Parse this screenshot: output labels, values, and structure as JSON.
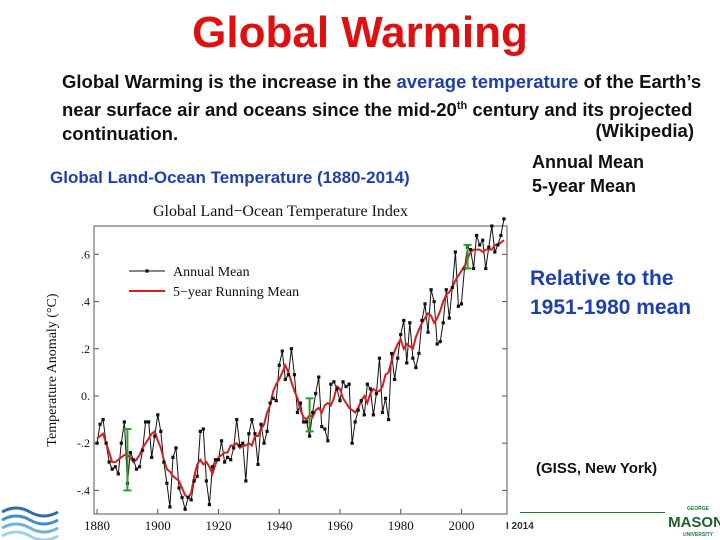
{
  "slide": {
    "title": "Global Warming",
    "intro_pre": "Global Warming is the increase in the ",
    "intro_highlight": "average temperature",
    "intro_mid": " of the Earth’s near surface air and oceans since the mid-20",
    "intro_sup": "th",
    "intro_post": " century and its projected continuation.",
    "wiki": "(Wikipedia)",
    "subtitle": "Global Land-Ocean Temperature (1880-2014)",
    "legend_note_1": "Annual Mean",
    "legend_note_2": "5-year Mean",
    "relative_1": "Relative to the",
    "relative_2": "1951-1980 mean",
    "source": "(GISS, New York)",
    "footer_year": "I 2014",
    "logo_top": "GEORGE",
    "logo_main": "MASON",
    "logo_bottom": "UNIVERSITY"
  },
  "colors": {
    "title": "#e01010",
    "highlight": "#1f3fb0",
    "annual": "#111111",
    "running": "#d42020",
    "error_bar": "#2e9e2e"
  },
  "chart_data": {
    "type": "line",
    "title": "Global Land−Ocean Temperature Index",
    "xlabel": "",
    "ylabel": "Temperature Anomaly (°C)",
    "xlim": [
      1879,
      2015
    ],
    "ylim": [
      -0.5,
      0.72
    ],
    "x_ticks": [
      1880,
      1900,
      1920,
      1940,
      1960,
      1980,
      2000
    ],
    "y_ticks": [
      -0.4,
      -0.2,
      0.0,
      0.2,
      0.4,
      0.6
    ],
    "y_tick_labels": [
      "-.4",
      "-.2",
      "0.",
      ".2",
      ".4",
      ".6"
    ],
    "legend": [
      "Annual Mean",
      "5−year Running Mean"
    ],
    "legend_position": "top-left",
    "years_start": 1880,
    "series": [
      {
        "name": "Annual Mean",
        "values": [
          -0.2,
          -0.12,
          -0.1,
          -0.2,
          -0.28,
          -0.31,
          -0.3,
          -0.33,
          -0.2,
          -0.11,
          -0.37,
          -0.24,
          -0.27,
          -0.31,
          -0.3,
          -0.23,
          -0.11,
          -0.11,
          -0.26,
          -0.17,
          -0.08,
          -0.15,
          -0.28,
          -0.37,
          -0.47,
          -0.26,
          -0.22,
          -0.39,
          -0.43,
          -0.48,
          -0.43,
          -0.44,
          -0.36,
          -0.34,
          -0.15,
          -0.14,
          -0.36,
          -0.46,
          -0.3,
          -0.27,
          -0.27,
          -0.19,
          -0.28,
          -0.26,
          -0.27,
          -0.22,
          -0.1,
          -0.21,
          -0.2,
          -0.36,
          -0.16,
          -0.1,
          -0.16,
          -0.29,
          -0.12,
          -0.2,
          -0.15,
          -0.03,
          -0.01,
          -0.02,
          0.13,
          0.19,
          0.07,
          0.09,
          0.2,
          0.09,
          -0.07,
          -0.03,
          -0.11,
          -0.11,
          -0.17,
          -0.07,
          0.01,
          0.08,
          -0.13,
          -0.14,
          -0.19,
          0.05,
          0.06,
          0.03,
          -0.02,
          0.06,
          0.04,
          0.05,
          -0.2,
          -0.11,
          -0.06,
          -0.02,
          -0.08,
          0.05,
          0.03,
          -0.08,
          0.01,
          0.16,
          -0.07,
          -0.01,
          -0.1,
          0.18,
          0.07,
          0.16,
          0.26,
          0.32,
          0.14,
          0.31,
          0.16,
          0.12,
          0.18,
          0.32,
          0.39,
          0.27,
          0.45,
          0.4,
          0.22,
          0.23,
          0.31,
          0.45,
          0.33,
          0.46,
          0.61,
          0.38,
          0.39,
          0.54,
          0.63,
          0.62,
          0.54,
          0.68,
          0.64,
          0.66,
          0.54,
          0.63,
          0.72,
          0.61,
          0.64,
          0.68,
          0.75
        ]
      },
      {
        "name": "5−year Running Mean",
        "values": [
          -0.18,
          -0.17,
          -0.16,
          -0.2,
          -0.24,
          -0.28,
          -0.28,
          -0.27,
          -0.26,
          -0.25,
          -0.25,
          -0.26,
          -0.28,
          -0.27,
          -0.25,
          -0.22,
          -0.2,
          -0.18,
          -0.16,
          -0.15,
          -0.19,
          -0.22,
          -0.27,
          -0.31,
          -0.32,
          -0.34,
          -0.35,
          -0.36,
          -0.39,
          -0.42,
          -0.43,
          -0.41,
          -0.34,
          -0.29,
          -0.27,
          -0.29,
          -0.28,
          -0.3,
          -0.33,
          -0.29,
          -0.26,
          -0.25,
          -0.24,
          -0.24,
          -0.21,
          -0.21,
          -0.2,
          -0.22,
          -0.21,
          -0.21,
          -0.2,
          -0.21,
          -0.17,
          -0.17,
          -0.14,
          -0.12,
          -0.07,
          -0.04,
          0.02,
          0.05,
          0.07,
          0.1,
          0.13,
          0.1,
          0.06,
          0.02,
          -0.01,
          -0.06,
          -0.09,
          -0.1,
          -0.08,
          -0.09,
          -0.06,
          -0.05,
          -0.07,
          -0.04,
          -0.03,
          -0.04,
          -0.01,
          0.04,
          0.03,
          -0.01,
          -0.03,
          -0.05,
          -0.06,
          -0.07,
          -0.05,
          -0.02,
          0.0,
          -0.03,
          0.01,
          0.03,
          0.02,
          0.02,
          0.04,
          0.09,
          0.1,
          0.15,
          0.19,
          0.22,
          0.24,
          0.2,
          0.22,
          0.21,
          0.2,
          0.25,
          0.28,
          0.31,
          0.33,
          0.35,
          0.34,
          0.31,
          0.33,
          0.36,
          0.4,
          0.43,
          0.44,
          0.46,
          0.49,
          0.51,
          0.53,
          0.55,
          0.58,
          0.61,
          0.62,
          0.62,
          0.62,
          0.61,
          0.62,
          0.62,
          0.62,
          0.64,
          0.64,
          0.65,
          0.66
        ]
      }
    ],
    "error_bars": [
      {
        "x": 1890,
        "center": -0.27,
        "half_width": 0.13
      },
      {
        "x": 1950,
        "center": -0.08,
        "half_width": 0.07
      },
      {
        "x": 2002,
        "center": 0.59,
        "half_width": 0.05
      }
    ]
  }
}
